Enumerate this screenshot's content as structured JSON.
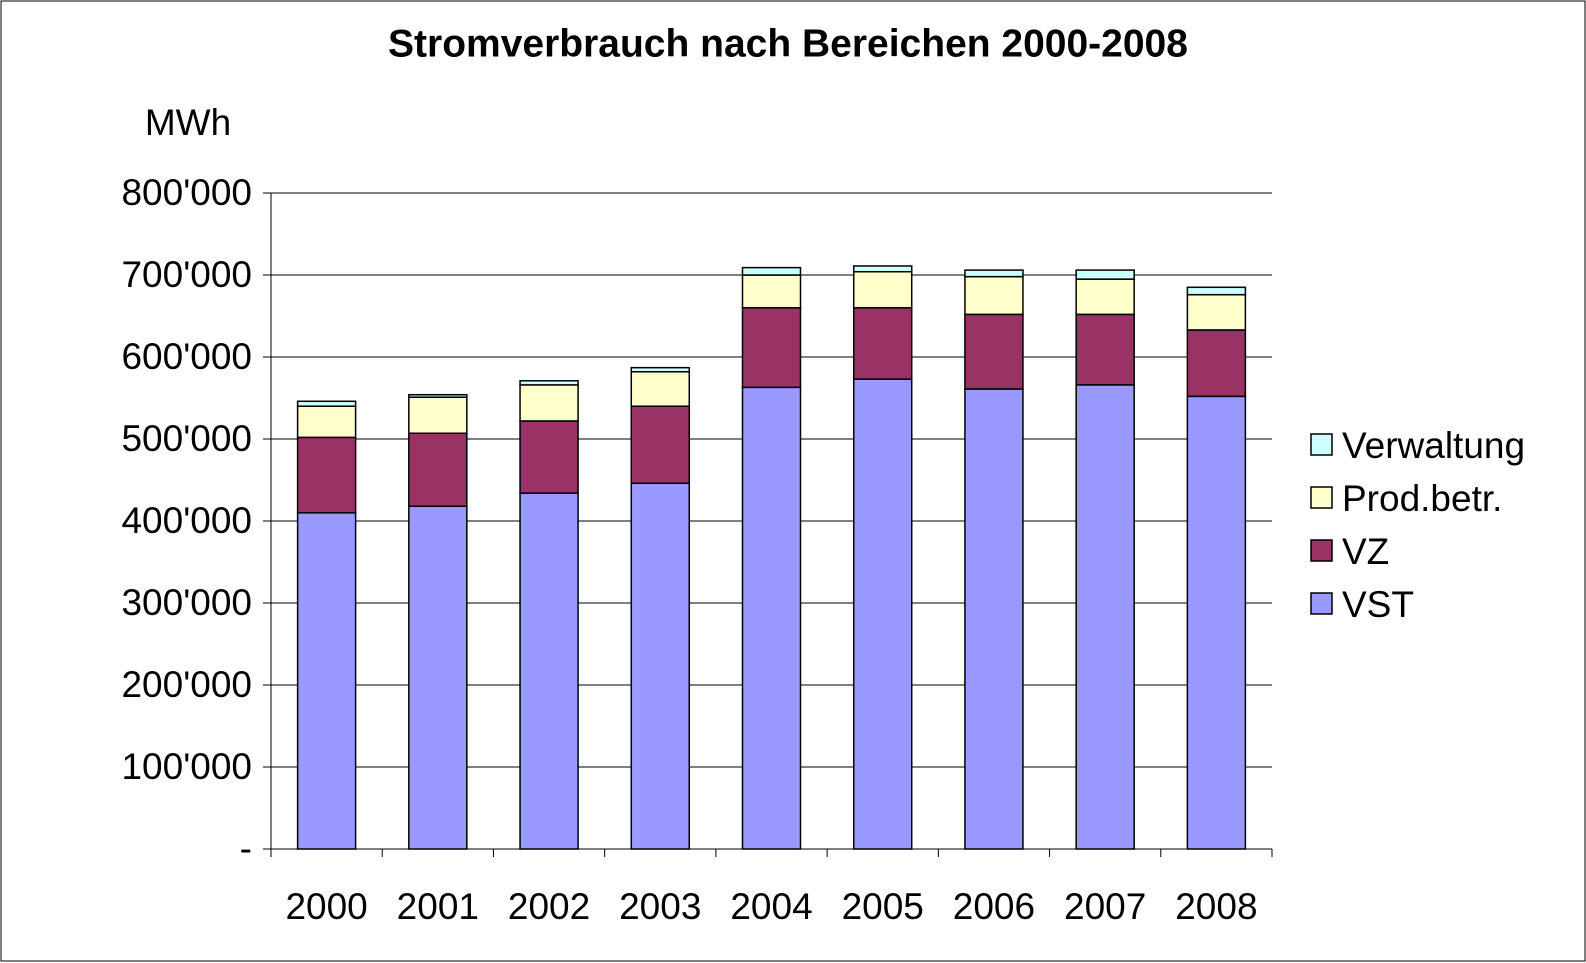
{
  "chart_data": {
    "type": "stacked_bar",
    "title": "Stromverbrauch nach Bereichen 2000-2008",
    "y_label": "MWh",
    "categories": [
      "2000",
      "2001",
      "2002",
      "2003",
      "2004",
      "2005",
      "2006",
      "2007",
      "2008"
    ],
    "series": [
      {
        "name": "VST",
        "color": "#9999ff",
        "values": [
          410000,
          418000,
          434000,
          446000,
          563000,
          573000,
          561000,
          566000,
          552000
        ]
      },
      {
        "name": "VZ",
        "color": "#993366",
        "values": [
          92000,
          89000,
          88000,
          94000,
          97000,
          87000,
          91000,
          86000,
          81000
        ]
      },
      {
        "name": "Prod.betr.",
        "color": "#ffffcc",
        "values": [
          38000,
          44000,
          44000,
          42000,
          40000,
          44000,
          46000,
          43000,
          43000
        ]
      },
      {
        "name": "Verwaltung",
        "color": "#ccffff",
        "values": [
          6000,
          3000,
          5000,
          5000,
          9000,
          7000,
          8000,
          11000,
          9000
        ]
      }
    ],
    "ylim": [
      0,
      800000
    ],
    "yticks": [
      {
        "value": 0,
        "label": "-"
      },
      {
        "value": 100000,
        "label": "100'000"
      },
      {
        "value": 200000,
        "label": "200'000"
      },
      {
        "value": 300000,
        "label": "300'000"
      },
      {
        "value": 400000,
        "label": "400'000"
      },
      {
        "value": 500000,
        "label": "500'000"
      },
      {
        "value": 600000,
        "label": "600'000"
      },
      {
        "value": 700000,
        "label": "700'000"
      },
      {
        "value": 800000,
        "label": "800'000"
      }
    ],
    "grid": true,
    "legend": "right"
  }
}
